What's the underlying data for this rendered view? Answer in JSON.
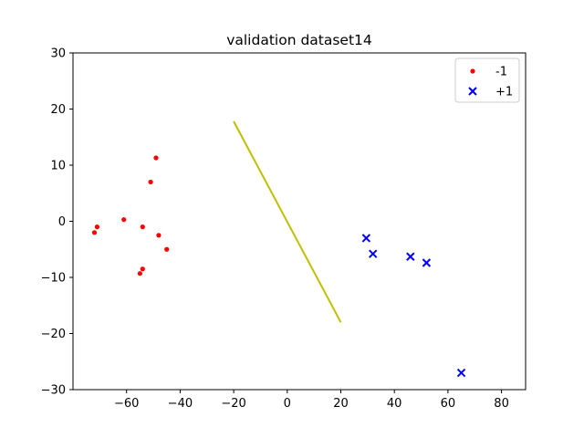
{
  "chart_data": {
    "type": "scatter",
    "title": "validation dataset14",
    "xlabel": "",
    "ylabel": "",
    "xlim": [
      -80,
      89
    ],
    "ylim": [
      -30,
      30
    ],
    "xticks": [
      -60,
      -40,
      -20,
      0,
      20,
      40,
      60,
      80
    ],
    "yticks": [
      -30,
      -20,
      -10,
      0,
      10,
      20,
      30
    ],
    "xtick_labels": [
      "−60",
      "−40",
      "−20",
      "0",
      "20",
      "40",
      "60",
      "80"
    ],
    "ytick_labels": [
      "−30",
      "−20",
      "−10",
      "0",
      "10",
      "20",
      "30"
    ],
    "grid": false,
    "legend_position": "top-right",
    "series": [
      {
        "name": "-1",
        "marker": "dot",
        "color": "#ff0000",
        "points": [
          [
            -71,
            -1
          ],
          [
            -72,
            -2
          ],
          [
            -61,
            0.3
          ],
          [
            -49,
            11.3
          ],
          [
            -51,
            7
          ],
          [
            -54,
            -1
          ],
          [
            -48,
            -2.5
          ],
          [
            -45,
            -5
          ],
          [
            -54,
            -8.5
          ],
          [
            -55,
            -9.3
          ]
        ]
      },
      {
        "name": "+1",
        "marker": "x",
        "color": "#0000ff",
        "points": [
          [
            29.5,
            -3
          ],
          [
            32,
            -5.8
          ],
          [
            46,
            -6.3
          ],
          [
            52,
            -7.4
          ],
          [
            65,
            -27
          ]
        ]
      }
    ],
    "lines": [
      {
        "color": "#bfbf00",
        "points": [
          [
            -20,
            17.8
          ],
          [
            20,
            -18
          ]
        ]
      }
    ]
  }
}
